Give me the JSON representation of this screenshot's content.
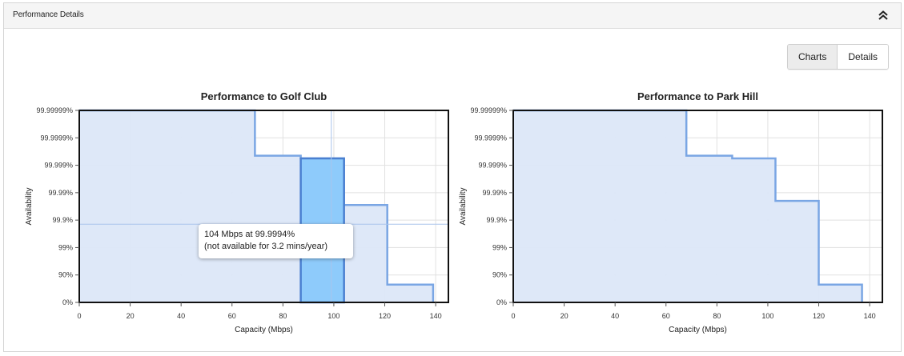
{
  "panel": {
    "title": "Performance Details"
  },
  "icons": {
    "collapse": "double-chevron-up-icon"
  },
  "view_toggle": {
    "charts_label": "Charts",
    "details_label": "Details",
    "active": "Charts"
  },
  "colors": {
    "fill": "#dce7f8",
    "line": "#7aa6e4",
    "highlight_fill": "#8ecbfb",
    "highlight_line": "#4a7fd0",
    "axis": "#111111"
  },
  "tooltip": {
    "line1": "104 Mbps at 99.9994%",
    "line2": "(not available for 3.2 mins/year)"
  },
  "chart_data": [
    {
      "type": "area",
      "title": "Performance to Golf Club",
      "xlabel": "Capacity (Mbps)",
      "ylabel": "Availability",
      "xlim": [
        0,
        145
      ],
      "x_ticks": [
        0,
        20,
        40,
        60,
        80,
        100,
        120,
        140
      ],
      "y_categories": [
        "0%",
        "90%",
        "99%",
        "99.9%",
        "99.99%",
        "99.999%",
        "99.9999%",
        "99.99999%"
      ],
      "grid": true,
      "step_points": [
        [
          0,
          7
        ],
        [
          69,
          7
        ],
        [
          69,
          5.35
        ],
        [
          87,
          5.35
        ],
        [
          87,
          5.25
        ],
        [
          104,
          5.25
        ],
        [
          104,
          3.55
        ],
        [
          121,
          3.55
        ],
        [
          121,
          0.65
        ],
        [
          139,
          0.65
        ],
        [
          139,
          0
        ]
      ],
      "highlight": {
        "x_from": 87,
        "x_to": 104,
        "availability": "99.9994%",
        "capacity_mbps": 104
      },
      "crosshair": {
        "x": 99,
        "y": 2.85
      }
    },
    {
      "type": "area",
      "title": "Performance to Park Hill",
      "xlabel": "Capacity (Mbps)",
      "ylabel": "Availability",
      "xlim": [
        0,
        145
      ],
      "x_ticks": [
        0,
        20,
        40,
        60,
        80,
        100,
        120,
        140
      ],
      "y_categories": [
        "0%",
        "90%",
        "99%",
        "99.9%",
        "99.99%",
        "99.999%",
        "99.9999%",
        "99.99999%"
      ],
      "grid": true,
      "step_points": [
        [
          0,
          7
        ],
        [
          68,
          7
        ],
        [
          68,
          5.35
        ],
        [
          86,
          5.35
        ],
        [
          86,
          5.25
        ],
        [
          103,
          5.25
        ],
        [
          103,
          3.7
        ],
        [
          120,
          3.7
        ],
        [
          120,
          0.65
        ],
        [
          137,
          0.65
        ],
        [
          137,
          0
        ]
      ]
    }
  ]
}
